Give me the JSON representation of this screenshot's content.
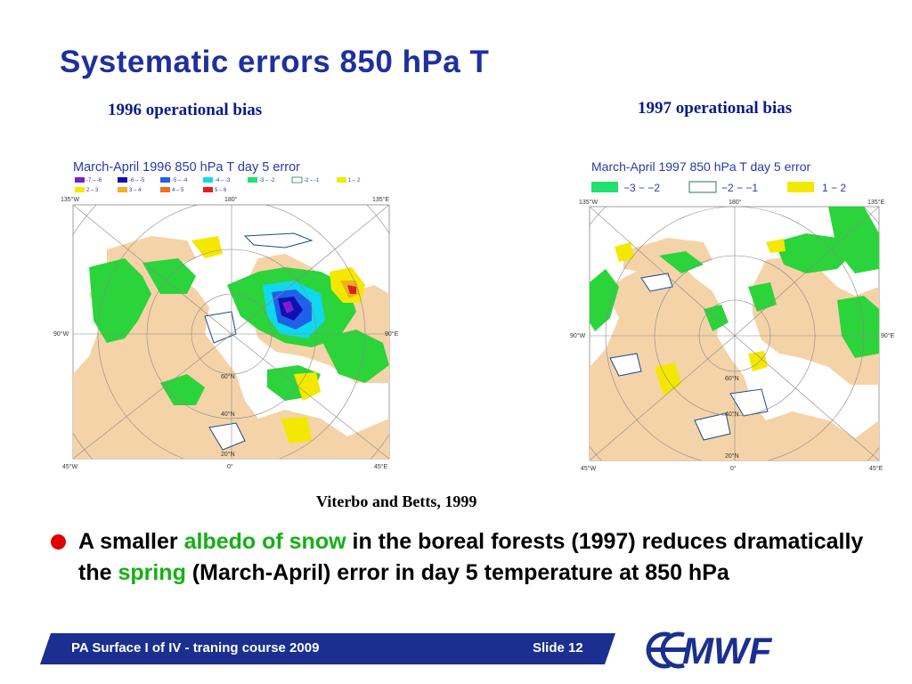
{
  "slide": {
    "title": "Systematic errors 850 hPa T",
    "caption_left": "1996 operational bias",
    "caption_right": "1997 operational bias",
    "credit": "Viterbo and Betts, 1999",
    "bullet": {
      "part1": "A smaller ",
      "highlight1": "albedo of snow",
      "part2": " in the boreal forests (1997) reduces dramatically the ",
      "highlight2": "spring",
      "part3": " (March-April) error in day 5 temperature at 850 hPa"
    },
    "footer": {
      "left": "PA Surface I of IV - traning course 2009",
      "right": "Slide 12",
      "logo": "ECMWF"
    },
    "colors": {
      "title": "#1e2f9e",
      "highlight": "#14b014",
      "bullet": "#e00000",
      "footer": "#1a2f8f"
    }
  },
  "map1996": {
    "title": "March-April 1996 850 hPa T day 5 error",
    "legend": [
      "-7 – -6",
      "-6 – -5",
      "-5 – -4",
      "-4 – -3",
      "-3 – -2",
      "-2 – -1",
      "1 – 2",
      "2 – 3",
      "3 – 4",
      "4 – 5",
      "5 – 6"
    ],
    "corners": {
      "tl": "135°W",
      "top": "180°",
      "tr": "135°E",
      "left": "90°W",
      "right": "90°E",
      "bl": "45°W",
      "bottom": "0°",
      "br": "45°E"
    },
    "lat": {
      "l60": "60°N",
      "l40": "40°N",
      "l20": "20°N"
    }
  },
  "map1997": {
    "title": "March-April 1997 850 hPa T day 5 error",
    "legend": [
      "−3 − −2",
      "−2 − −1",
      "1 − 2"
    ],
    "corners": {
      "tl": "135°W",
      "top": "180°",
      "tr": "135°E",
      "left": "90°W",
      "right": "90°E",
      "bl": "45°W",
      "bottom": "0°",
      "br": "45°E"
    },
    "lat": {
      "l60": "60°N",
      "l40": "40°N",
      "l20": "20°N"
    }
  }
}
